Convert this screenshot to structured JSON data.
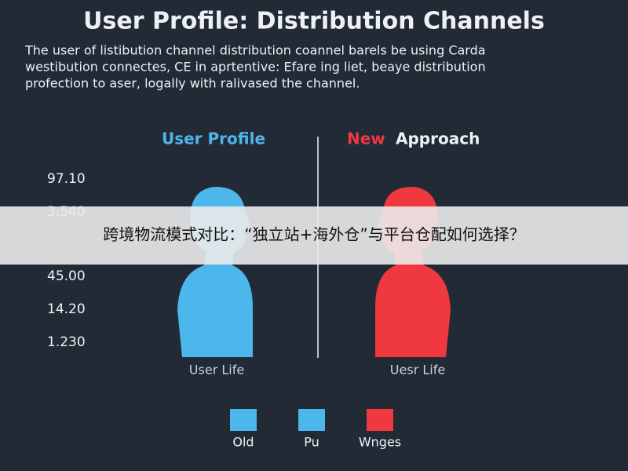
{
  "title": "User Profile: Distribution Channels",
  "description": [
    "The user of listibution channel distribution cоannel barels be using Carda",
    "westibution connectes, CE in aprtentive: Efare ing liet, beaye distribution",
    "profection to aser, logally with ralivased the channel."
  ],
  "panels": [
    {
      "heading": [
        "User Profile"
      ],
      "caption": "User Life"
    },
    {
      "heading": [
        "New",
        "Approach"
      ],
      "caption": "Uesr Life"
    }
  ],
  "scale_labels": [
    "97.10",
    "3.540",
    "45.00",
    "14.20",
    "1.230"
  ],
  "legend": [
    {
      "label": "Old",
      "color": "#4db6ea"
    },
    {
      "label": "Pu",
      "color": "#4db6ea"
    },
    {
      "label": "Wnges",
      "color": "#f0383f"
    }
  ],
  "banner": "跨境物流模式对比：“独立站+海外仓”与平台仓配如何选择？"
}
